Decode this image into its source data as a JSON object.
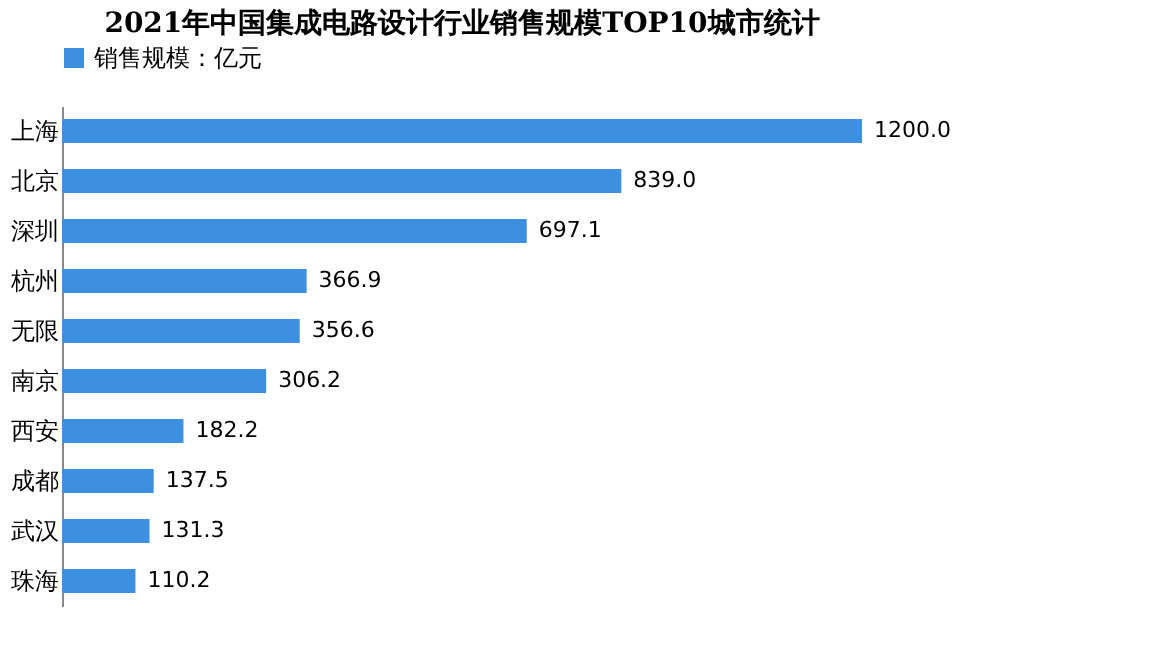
{
  "chart_data": {
    "type": "bar",
    "orientation": "horizontal",
    "title": "2021年中国集成电路设计行业销售规模TOP10城市统计",
    "categories": [
      "上海",
      "北京",
      "深圳",
      "杭州",
      "无限",
      "南京",
      "西安",
      "成都",
      "武汉",
      "珠海"
    ],
    "series": [
      {
        "name": "销售规模：亿元",
        "color": "#3d8fe0",
        "values": [
          1200.0,
          839.0,
          697.1,
          366.9,
          356.6,
          306.2,
          182.2,
          137.5,
          131.3,
          110.2
        ],
        "value_labels": [
          "1200.0",
          "839.0",
          "697.1",
          "366.9",
          "356.6",
          "306.2",
          "182.2",
          "137.5",
          "131.3",
          "110.2"
        ]
      }
    ],
    "legend": "top",
    "grid": false
  }
}
